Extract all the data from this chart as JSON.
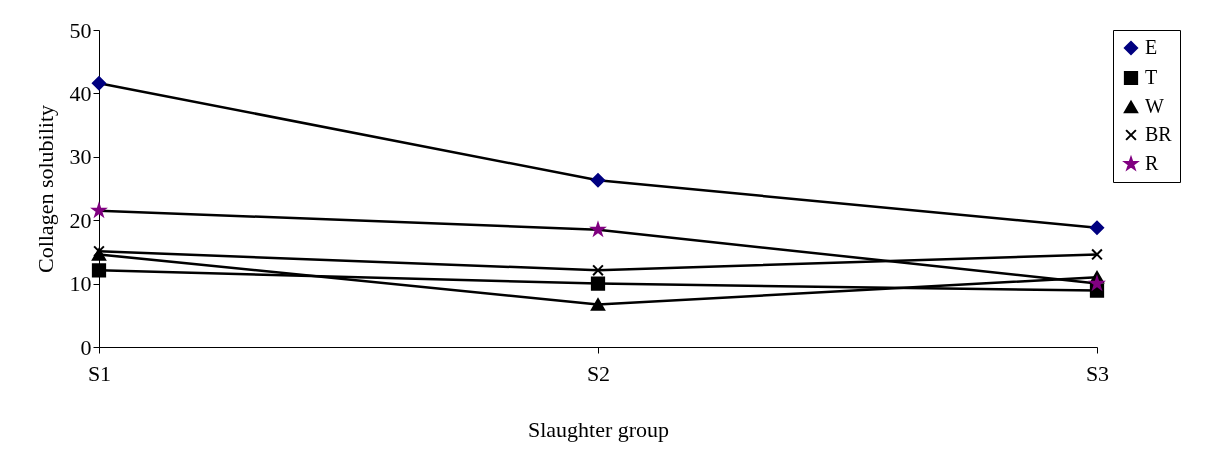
{
  "chart_data": {
    "type": "line",
    "xlabel": "Slaughter group",
    "ylabel": "Collagen solubility",
    "categories": [
      "S1",
      "S2",
      "S3"
    ],
    "ylim": [
      0,
      50
    ],
    "yticks": [
      0,
      10,
      20,
      30,
      40,
      50
    ],
    "grid": false,
    "legend": "top right",
    "series": [
      {
        "name": "E",
        "color": "#000080",
        "marker": "diamond",
        "values": [
          41.6,
          26.3,
          18.8
        ]
      },
      {
        "name": "T",
        "color": "#000000",
        "marker": "square",
        "values": [
          12.1,
          10.0,
          8.9
        ]
      },
      {
        "name": "W",
        "color": "#000000",
        "marker": "triangle",
        "values": [
          14.6,
          6.7,
          11.0
        ]
      },
      {
        "name": "BR",
        "color": "#000000",
        "marker": "cross",
        "values": [
          15.1,
          12.1,
          14.6
        ]
      },
      {
        "name": "R",
        "color": "#800080",
        "marker": "star",
        "values": [
          21.5,
          18.5,
          10.0
        ]
      }
    ]
  }
}
